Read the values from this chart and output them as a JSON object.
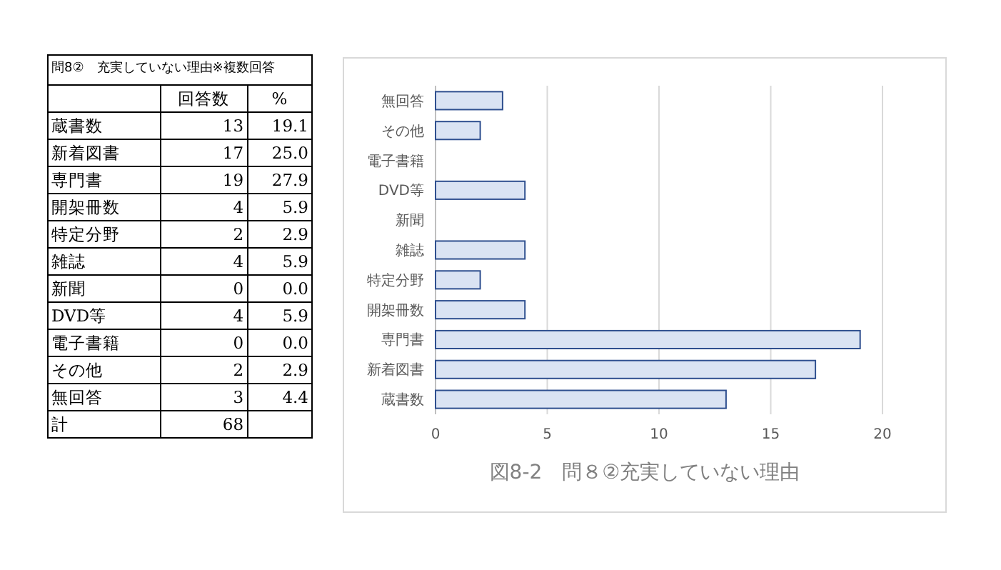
{
  "chart_data": [
    {
      "type": "other",
      "data_labels": true,
      "title": "問8②　充実していない理由※複数回答",
      "categories": [
        "蔵書数",
        "新着図書",
        "専門書",
        "開架冊数",
        "特定分野",
        "雑誌",
        "新聞",
        "DVD等",
        "電子書籍",
        "その他",
        "無回答",
        "計"
      ],
      "series": [
        {
          "name": "回答数",
          "values": [
            13,
            17,
            19,
            4,
            2,
            4,
            0,
            4,
            0,
            2,
            3,
            68
          ]
        },
        {
          "name": "%",
          "values": [
            19.1,
            25.0,
            27.9,
            5.9,
            2.9,
            5.9,
            0.0,
            5.9,
            0.0,
            2.9,
            4.4,
            null
          ],
          "value_labels": [
            "19.1",
            "25.0",
            "27.9",
            "5.9",
            "2.9",
            "5.9",
            "0.0",
            "5.9",
            "0.0",
            "2.9",
            "4.4",
            null
          ]
        }
      ]
    },
    {
      "type": "bar",
      "orientation": "horizontal",
      "title": "図8-2　問８②充実していない理由",
      "categories": [
        "無回答",
        "その他",
        "電子書籍",
        "DVD等",
        "新聞",
        "雑誌",
        "特定分野",
        "開架冊数",
        "専門書",
        "新着図書",
        "蔵書数"
      ],
      "values": [
        3,
        2,
        0,
        4,
        0,
        4,
        2,
        4,
        19,
        17,
        13
      ],
      "color": "#dae3f3",
      "xlim": [
        0,
        20
      ],
      "xticks": [
        0,
        5,
        10,
        15,
        20
      ],
      "grid": "x"
    }
  ]
}
